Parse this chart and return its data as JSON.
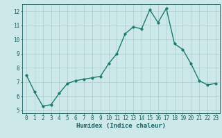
{
  "x": [
    0,
    1,
    2,
    3,
    4,
    5,
    6,
    7,
    8,
    9,
    10,
    11,
    12,
    13,
    14,
    15,
    16,
    17,
    18,
    19,
    20,
    21,
    22,
    23
  ],
  "y": [
    7.5,
    6.3,
    5.3,
    5.4,
    6.2,
    6.9,
    7.1,
    7.2,
    7.3,
    7.4,
    8.3,
    9.0,
    10.4,
    10.9,
    10.75,
    12.1,
    11.2,
    12.2,
    9.7,
    9.3,
    8.3,
    7.1,
    6.8,
    6.9
  ],
  "line_color": "#1a7a6e",
  "marker_color": "#1a7a6e",
  "bg_color": "#cce8e8",
  "grid_color": "#aacccc",
  "xlabel": "Humidex (Indice chaleur)",
  "ylim": [
    4.8,
    12.5
  ],
  "xlim": [
    -0.5,
    23.5
  ],
  "yticks": [
    5,
    6,
    7,
    8,
    9,
    10,
    11,
    12
  ],
  "xticks": [
    0,
    1,
    2,
    3,
    4,
    5,
    6,
    7,
    8,
    9,
    10,
    11,
    12,
    13,
    14,
    15,
    16,
    17,
    18,
    19,
    20,
    21,
    22,
    23
  ],
  "tick_label_color": "#1a6060",
  "axis_color": "#1a6060",
  "xlabel_color": "#1a6060",
  "xlabel_fontsize": 6.5,
  "tick_fontsize": 5.5,
  "linewidth": 1.0,
  "markersize": 2.5
}
